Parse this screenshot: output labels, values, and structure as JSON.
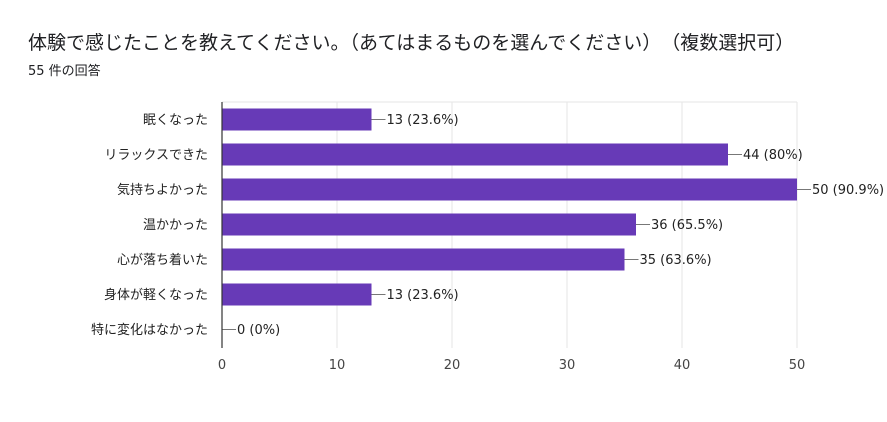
{
  "header": {
    "title": "体験で感じたことを教えてください。（あてはまるものを選んでください）　（複数選択可）",
    "response_count": "55 件の回答"
  },
  "colors": {
    "bar": "#673ab7",
    "grid": "#e6e6e6",
    "axis": "#333333"
  },
  "chart_data": {
    "type": "bar",
    "orientation": "horizontal",
    "categories": [
      "眠くなった",
      "リラックスできた",
      "気持ちよかった",
      "温かかった",
      "心が落ち着いた",
      "身体が軽くなった",
      "特に変化はなかった"
    ],
    "values": [
      13,
      44,
      50,
      36,
      35,
      13,
      0
    ],
    "data_labels": [
      "13 (23.6%)",
      "44 (80%)",
      "50 (90.9%)",
      "36 (65.5%)",
      "35 (63.6%)",
      "13 (23.6%)",
      "0 (0%)"
    ],
    "xlim": [
      0,
      50
    ],
    "xticks": [
      0,
      10,
      20,
      30,
      40,
      50
    ],
    "grid": true,
    "title": "",
    "xlabel": "",
    "ylabel": ""
  }
}
